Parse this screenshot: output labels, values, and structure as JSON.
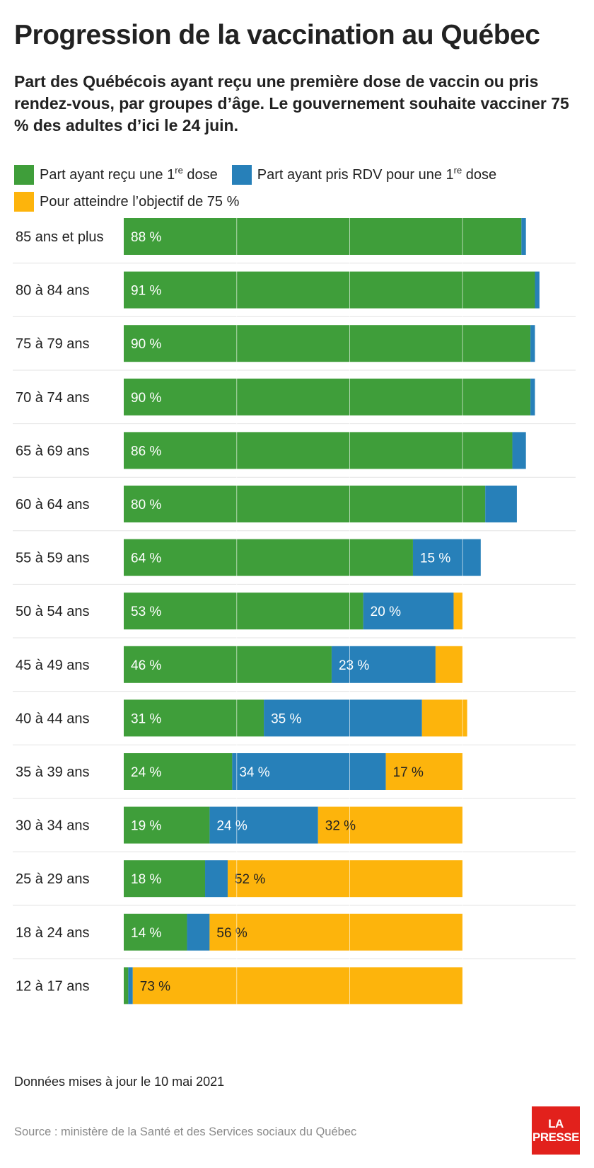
{
  "title": "Progression de la vaccination au Québec",
  "subtitle": "Part des Québécois ayant reçu une première dose de vaccin ou pris rendez-vous, par groupes d’âge. Le gouvernement souhaite vacciner 75 % des adultes d’ici le 24 juin.",
  "legend": {
    "dose": {
      "before": "Part ayant reçu une 1",
      "sup": "re",
      "after": " dose",
      "color": "#3f9e3a"
    },
    "rdv": {
      "before": "Part ayant pris RDV pour une 1",
      "sup": "re",
      "after": " dose",
      "color": "#2780b9"
    },
    "objectif": {
      "label": "Pour atteindre l’objectif de 75 %",
      "color": "#fdb40c"
    }
  },
  "footer": {
    "update_note": "Données mises à jour le 10 mai 2021",
    "source": "Source : ministère de la Santé et des Services sociaux du Québec",
    "logo_line1": "LA",
    "logo_line2": "PRESSE"
  },
  "chart_data": {
    "type": "bar",
    "orientation": "horizontal",
    "stacked": true,
    "xlim": [
      0,
      100
    ],
    "x_ticks": [
      0,
      25,
      50,
      75,
      100
    ],
    "x_tick_labels": [
      "0 %",
      "25 %",
      "50 %",
      "75 %",
      "100 %"
    ],
    "grid": true,
    "legend_position": "top",
    "categories": [
      "85 ans et plus",
      "80 à 84 ans",
      "75 à 79 ans",
      "70 à 74 ans",
      "65 à 69 ans",
      "60 à 64 ans",
      "55 à 59 ans",
      "50 à 54 ans",
      "45 à 49 ans",
      "40 à 44 ans",
      "35 à 39 ans",
      "30 à 34 ans",
      "25 à 29 ans",
      "18 à 24 ans",
      "12 à 17 ans"
    ],
    "series": [
      {
        "key": "dose",
        "color": "#3f9e3a",
        "values": [
          88,
          91,
          90,
          90,
          86,
          80,
          64,
          53,
          46,
          31,
          24,
          19,
          18,
          14,
          1
        ],
        "labels": [
          "88 %",
          "91 %",
          "90 %",
          "90 %",
          "86 %",
          "80 %",
          "64 %",
          "53 %",
          "46 %",
          "31 %",
          "24 %",
          "19 %",
          "18 %",
          "14 %",
          ""
        ]
      },
      {
        "key": "rdv",
        "color": "#2780b9",
        "values": [
          1,
          1,
          1,
          1,
          3,
          7,
          15,
          20,
          23,
          35,
          34,
          24,
          5,
          5,
          1
        ],
        "labels": [
          "",
          "",
          "",
          "",
          "",
          "",
          "15 %",
          "20 %",
          "23 %",
          "35 %",
          "34 %",
          "24 %",
          "",
          "",
          ""
        ]
      },
      {
        "key": "objectif",
        "color": "#fdb40c",
        "values": [
          0,
          0,
          0,
          0,
          0,
          0,
          0,
          2,
          6,
          10,
          17,
          32,
          52,
          56,
          73
        ],
        "labels": [
          "",
          "",
          "",
          "",
          "",
          "",
          "",
          "",
          "",
          "",
          "17 %",
          "32 %",
          "52 %",
          "56 %",
          "73 %"
        ]
      }
    ]
  }
}
